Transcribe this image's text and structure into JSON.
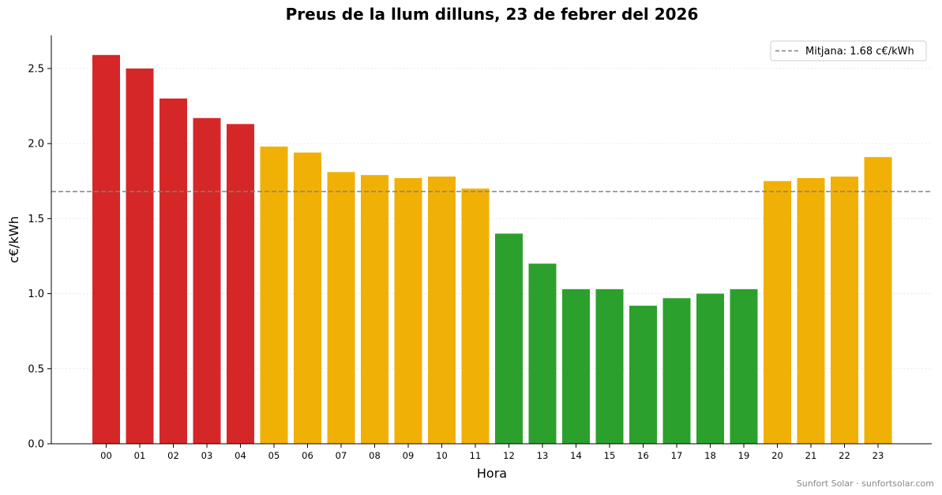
{
  "chart_data": {
    "type": "bar",
    "title": "Preus de la llum dilluns, 23 de febrer del 2026",
    "xlabel": "Hora",
    "ylabel": "c€/kWh",
    "ylim": [
      0,
      2.72
    ],
    "yticks": [
      "0.0",
      "0.5",
      "1.0",
      "1.5",
      "2.0",
      "2.5"
    ],
    "categories": [
      "00",
      "01",
      "02",
      "03",
      "04",
      "05",
      "06",
      "07",
      "08",
      "09",
      "10",
      "11",
      "12",
      "13",
      "14",
      "15",
      "16",
      "17",
      "18",
      "19",
      "20",
      "21",
      "22",
      "23"
    ],
    "values": [
      2.59,
      2.5,
      2.3,
      2.17,
      2.13,
      1.98,
      1.94,
      1.81,
      1.79,
      1.77,
      1.78,
      1.7,
      1.4,
      1.2,
      1.03,
      1.03,
      0.92,
      0.97,
      1.0,
      1.03,
      1.75,
      1.77,
      1.78,
      1.91
    ],
    "levels": [
      "high",
      "high",
      "high",
      "high",
      "high",
      "mid",
      "mid",
      "mid",
      "mid",
      "mid",
      "mid",
      "mid",
      "low",
      "low",
      "low",
      "low",
      "low",
      "low",
      "low",
      "low",
      "mid",
      "mid",
      "mid",
      "mid"
    ],
    "colors": {
      "high": "#d62728",
      "mid": "#f0b005",
      "low": "#2ca02c"
    },
    "grid": "y-dotted",
    "mean": {
      "value": 1.68,
      "label": "Mitjana: 1.68 c€/kWh",
      "color": "#808080"
    },
    "legend_position": "top-right"
  },
  "footer": "Sunfort Solar · sunfortsolar.com"
}
